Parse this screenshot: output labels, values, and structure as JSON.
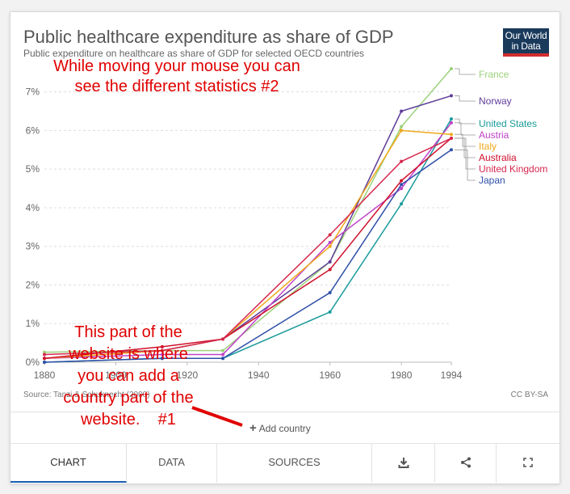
{
  "header": {
    "title": "Public healthcare expenditure as share of GDP",
    "subtitle": "Public expenditure on healthcare as share of GDP for selected OECD countries",
    "logo_line1": "Our World",
    "logo_line2": "in Data"
  },
  "footer": {
    "source": "Source: Tanzi & Schuknecht (2000)",
    "license": "CC BY-SA",
    "add_country": "Add country"
  },
  "tabs": [
    {
      "label": "CHART",
      "active": true
    },
    {
      "label": "DATA"
    },
    {
      "label": "SOURCES"
    }
  ],
  "tab_icons": [
    "download-icon",
    "share-icon",
    "fullscreen-icon"
  ],
  "annotations": {
    "top": [
      "While moving your mouse you can",
      "see the different statistics #2"
    ],
    "bottom": [
      "This part of the",
      "website is where",
      "you can add a",
      "country part of the",
      "website.    #1"
    ],
    "color": "#e00000"
  },
  "chart_data": {
    "type": "line",
    "title": "Public healthcare expenditure as share of GDP",
    "subtitle": "Public expenditure on healthcare as share of GDP for selected OECD countries",
    "x": [
      1880,
      1913,
      1930,
      1960,
      1980,
      1994
    ],
    "x_ticks": [
      "1880",
      "1900",
      "1920",
      "1940",
      "1960",
      "1980",
      "1994"
    ],
    "x_tick_values": [
      1880,
      1900,
      1920,
      1940,
      1960,
      1980,
      1994
    ],
    "y_ticks": [
      "0%",
      "1%",
      "2%",
      "3%",
      "4%",
      "5%",
      "6%",
      "7%"
    ],
    "ylim": [
      0,
      7.6
    ],
    "grid": "horizontal dashed",
    "legend": "right, labels at line ends",
    "series": [
      {
        "name": "France",
        "color": "#9bd17b",
        "values": [
          0.26,
          0.3,
          0.3,
          2.6,
          6.1,
          7.6
        ]
      },
      {
        "name": "Norway",
        "color": "#5e3c99",
        "values": [
          0.1,
          0.3,
          0.6,
          2.6,
          6.5,
          6.9
        ]
      },
      {
        "name": "United States",
        "color": "#1a9a9a",
        "values": [
          0.0,
          0.1,
          0.1,
          1.3,
          4.1,
          6.3
        ]
      },
      {
        "name": "Austria",
        "color": "#c042c8",
        "values": [
          0.1,
          0.2,
          0.2,
          3.1,
          4.5,
          6.2
        ]
      },
      {
        "name": "Italy",
        "color": "#f0a81a",
        "values": [
          0.1,
          0.3,
          0.6,
          3.0,
          6.0,
          5.9
        ]
      },
      {
        "name": "Australia",
        "color": "#d0102c",
        "values": [
          0.1,
          0.4,
          0.6,
          2.4,
          4.7,
          5.8
        ]
      },
      {
        "name": "United Kingdom",
        "color": "#d6284f",
        "values": [
          0.2,
          0.3,
          0.6,
          3.3,
          5.2,
          5.8
        ]
      },
      {
        "name": "Japan",
        "color": "#2f4fa8",
        "values": [
          0.0,
          0.1,
          0.1,
          1.8,
          4.6,
          5.5
        ]
      }
    ]
  }
}
